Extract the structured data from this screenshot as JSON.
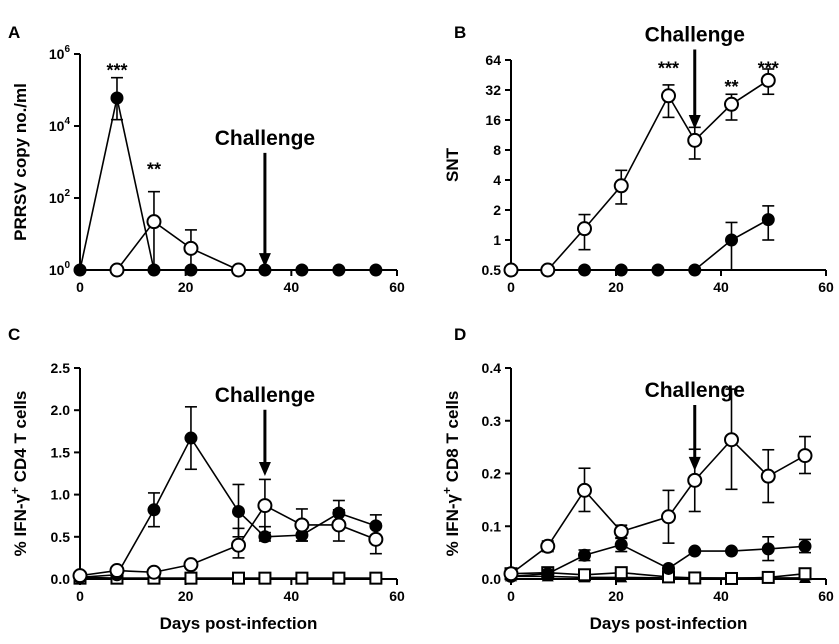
{
  "chart_data": [
    {
      "type": "line",
      "panel_label": "A",
      "ylabel": "PRRSV copy no./ml",
      "xlabel": "",
      "yscale": "log",
      "xlim": [
        0,
        60
      ],
      "ylim": [
        1,
        1000000
      ],
      "xticks": [
        0,
        20,
        40,
        60
      ],
      "yticks": [
        1,
        100,
        10000,
        1000000
      ],
      "ytick_labels": [
        {
          "base": "10",
          "exp": "0"
        },
        {
          "base": "10",
          "exp": "2"
        },
        {
          "base": "10",
          "exp": "4"
        },
        {
          "base": "10",
          "exp": "6"
        }
      ],
      "annotation": {
        "text": "Challenge",
        "x": 35,
        "arrow_tip_y": 1.2,
        "text_y": 3000
      },
      "significance": [
        {
          "text": "***",
          "x": 7,
          "y": 400000
        },
        {
          "text": "**",
          "x": 14,
          "y": 700
        }
      ],
      "series": [
        {
          "marker": "filled-circle",
          "points": [
            {
              "x": 0,
              "y": 1
            },
            {
              "x": 7,
              "y": 60000,
              "err": [
                15000,
                220000
              ]
            },
            {
              "x": 14,
              "y": 1
            },
            {
              "x": 21,
              "y": 1
            },
            {
              "x": 30,
              "y": 1
            },
            {
              "x": 35,
              "y": 1
            },
            {
              "x": 42,
              "y": 1
            },
            {
              "x": 49,
              "y": 1
            },
            {
              "x": 56,
              "y": 1
            }
          ]
        },
        {
          "marker": "open-circle",
          "points": [
            {
              "x": 7,
              "y": 1
            },
            {
              "x": 14,
              "y": 22,
              "err": [
                1,
                150
              ]
            },
            {
              "x": 21,
              "y": 4,
              "err": [
                1,
                13
              ]
            },
            {
              "x": 30,
              "y": 1
            }
          ]
        }
      ]
    },
    {
      "type": "line",
      "panel_label": "B",
      "ylabel": "SNT",
      "xlabel": "",
      "yscale": "log2",
      "xlim": [
        0,
        60
      ],
      "ylim": [
        0.5,
        64
      ],
      "xticks": [
        0,
        20,
        40,
        60
      ],
      "yticks": [
        0.5,
        1,
        2,
        4,
        8,
        16,
        32,
        64
      ],
      "ytick_labels": [
        "0.5",
        "1",
        "2",
        "4",
        "8",
        "16",
        "32",
        "64"
      ],
      "annotation": {
        "text": "Challenge",
        "x": 35,
        "arrow_tip_y": 13,
        "text_y": 98
      },
      "significance": [
        {
          "text": "***",
          "x": 30,
          "y": 55
        },
        {
          "text": "**",
          "x": 42,
          "y": 36
        },
        {
          "text": "***",
          "x": 49,
          "y": 55
        }
      ],
      "series": [
        {
          "marker": "filled-circle",
          "points": [
            {
              "x": 0,
              "y": 0.5
            },
            {
              "x": 7,
              "y": 0.5
            },
            {
              "x": 14,
              "y": 0.5
            },
            {
              "x": 21,
              "y": 0.5
            },
            {
              "x": 28,
              "y": 0.5
            },
            {
              "x": 35,
              "y": 0.5
            },
            {
              "x": 42,
              "y": 1,
              "err": [
                0.5,
                1.5
              ]
            },
            {
              "x": 49,
              "y": 1.6,
              "err": [
                1,
                2.2
              ]
            }
          ]
        },
        {
          "marker": "open-circle",
          "points": [
            {
              "x": 0,
              "y": 0.5
            },
            {
              "x": 7,
              "y": 0.5
            },
            {
              "x": 14,
              "y": 1.3,
              "err": [
                0.8,
                1.8
              ]
            },
            {
              "x": 21,
              "y": 3.5,
              "err": [
                2.3,
                5
              ]
            },
            {
              "x": 30,
              "y": 28,
              "err": [
                17,
                36
              ]
            },
            {
              "x": 35,
              "y": 10,
              "err": [
                6.5,
                13.5
              ]
            },
            {
              "x": 42,
              "y": 23,
              "err": [
                16,
                29
              ]
            },
            {
              "x": 49,
              "y": 40,
              "err": [
                29,
                52
              ]
            }
          ]
        }
      ]
    },
    {
      "type": "line",
      "panel_label": "C",
      "ylabel_parts": [
        "% IFN-γ",
        "+",
        " CD4 T cells"
      ],
      "xlabel": "Days post-infection",
      "yscale": "linear",
      "xlim": [
        0,
        60
      ],
      "ylim": [
        0,
        2.5
      ],
      "xticks": [
        0,
        20,
        40,
        60
      ],
      "yticks": [
        0,
        0.5,
        1,
        1.5,
        2,
        2.5
      ],
      "ytick_labels": [
        "0.0",
        "0.5",
        "1.0",
        "1.5",
        "2.0",
        "2.5"
      ],
      "annotation": {
        "text": "Challenge",
        "x": 35,
        "arrow_tip_y": 1.22,
        "text_y": 2.1
      },
      "significance": [],
      "series": [
        {
          "marker": "filled-circle",
          "points": [
            {
              "x": 0,
              "y": 0.02
            },
            {
              "x": 7,
              "y": 0.05
            },
            {
              "x": 14,
              "y": 0.82,
              "err": [
                0.62,
                1.02
              ]
            },
            {
              "x": 21,
              "y": 1.67,
              "err": [
                1.3,
                2.04
              ]
            },
            {
              "x": 30,
              "y": 0.8,
              "err": [
                0.5,
                1.12
              ]
            },
            {
              "x": 35,
              "y": 0.5,
              "err": [
                0.45,
                0.62
              ]
            },
            {
              "x": 42,
              "y": 0.52,
              "err": [
                0.45,
                0.6
              ]
            },
            {
              "x": 49,
              "y": 0.78,
              "err": [
                0.6,
                0.93
              ]
            },
            {
              "x": 56,
              "y": 0.63,
              "err": [
                0.5,
                0.76
              ]
            }
          ]
        },
        {
          "marker": "open-circle",
          "points": [
            {
              "x": 0,
              "y": 0.04
            },
            {
              "x": 7,
              "y": 0.1
            },
            {
              "x": 14,
              "y": 0.08
            },
            {
              "x": 21,
              "y": 0.17
            },
            {
              "x": 30,
              "y": 0.4,
              "err": [
                0.25,
                0.6
              ]
            },
            {
              "x": 35,
              "y": 0.87,
              "err": [
                0.55,
                1.18
              ]
            },
            {
              "x": 42,
              "y": 0.64,
              "err": [
                0.45,
                0.83
              ]
            },
            {
              "x": 49,
              "y": 0.64,
              "err": [
                0.45,
                0.82
              ]
            },
            {
              "x": 56,
              "y": 0.47,
              "err": [
                0.3,
                0.65
              ]
            }
          ]
        },
        {
          "marker": "filled-triangle",
          "points": [
            {
              "x": 0,
              "y": 0.02
            },
            {
              "x": 7,
              "y": 0.01
            },
            {
              "x": 14,
              "y": 0.01
            },
            {
              "x": 21,
              "y": 0.01
            },
            {
              "x": 30,
              "y": 0.01
            },
            {
              "x": 35,
              "y": 0.01
            },
            {
              "x": 42,
              "y": 0.01
            },
            {
              "x": 49,
              "y": 0.01
            },
            {
              "x": 56,
              "y": 0.01
            }
          ]
        },
        {
          "marker": "open-square",
          "points": [
            {
              "x": 0,
              "y": 0.01
            },
            {
              "x": 7,
              "y": 0.01
            },
            {
              "x": 14,
              "y": 0.01
            },
            {
              "x": 21,
              "y": 0.01
            },
            {
              "x": 30,
              "y": 0.01
            },
            {
              "x": 35,
              "y": 0.01
            },
            {
              "x": 42,
              "y": 0.01
            },
            {
              "x": 49,
              "y": 0.01
            },
            {
              "x": 56,
              "y": 0.01
            }
          ]
        }
      ]
    },
    {
      "type": "line",
      "panel_label": "D",
      "ylabel_parts": [
        "% IFN-γ",
        "+",
        " CD8 T cells"
      ],
      "xlabel": "Days post-infection",
      "yscale": "linear",
      "xlim": [
        0,
        60
      ],
      "ylim": [
        0,
        0.4
      ],
      "xticks": [
        0,
        20,
        40,
        60
      ],
      "yticks": [
        0,
        0.1,
        0.2,
        0.3,
        0.4
      ],
      "ytick_labels": [
        "0.0",
        "0.1",
        "0.2",
        "0.3",
        "0.4"
      ],
      "annotation": {
        "text": "Challenge",
        "x": 35,
        "arrow_tip_y": 0.205,
        "text_y": 0.345
      },
      "significance": [],
      "series": [
        {
          "marker": "filled-circle",
          "points": [
            {
              "x": 0,
              "y": 0.005
            },
            {
              "x": 7,
              "y": 0.01
            },
            {
              "x": 14,
              "y": 0.045,
              "err": [
                0.035,
                0.055
              ]
            },
            {
              "x": 21,
              "y": 0.065,
              "err": [
                0.052,
                0.077
              ]
            },
            {
              "x": 30,
              "y": 0.02
            },
            {
              "x": 35,
              "y": 0.053
            },
            {
              "x": 42,
              "y": 0.053
            },
            {
              "x": 49,
              "y": 0.057,
              "err": [
                0.035,
                0.08
              ]
            },
            {
              "x": 56,
              "y": 0.062,
              "err": [
                0.05,
                0.075
              ]
            }
          ]
        },
        {
          "marker": "open-circle",
          "points": [
            {
              "x": 0,
              "y": 0.01
            },
            {
              "x": 7,
              "y": 0.062,
              "err": [
                0.052,
                0.072
              ]
            },
            {
              "x": 14,
              "y": 0.168,
              "err": [
                0.128,
                0.21
              ]
            },
            {
              "x": 21,
              "y": 0.09,
              "err": [
                0.078,
                0.102
              ]
            },
            {
              "x": 30,
              "y": 0.118,
              "err": [
                0.068,
                0.168
              ]
            },
            {
              "x": 35,
              "y": 0.187,
              "err": [
                0.128,
                0.246
              ]
            },
            {
              "x": 42,
              "y": 0.264,
              "err": [
                0.17,
                0.36
              ]
            },
            {
              "x": 49,
              "y": 0.195,
              "err": [
                0.145,
                0.245
              ]
            },
            {
              "x": 56,
              "y": 0.234,
              "err": [
                0.2,
                0.27
              ]
            }
          ]
        },
        {
          "marker": "filled-triangle",
          "points": [
            {
              "x": 0,
              "y": 0.005
            },
            {
              "x": 7,
              "y": 0.005
            },
            {
              "x": 14,
              "y": 0.003
            },
            {
              "x": 21,
              "y": 0.003
            },
            {
              "x": 30,
              "y": 0.002
            },
            {
              "x": 35,
              "y": 0.002
            },
            {
              "x": 42,
              "y": 0.002
            },
            {
              "x": 49,
              "y": 0.002
            },
            {
              "x": 56,
              "y": 0.002
            }
          ]
        },
        {
          "marker": "open-square",
          "points": [
            {
              "x": 0,
              "y": 0.01
            },
            {
              "x": 7,
              "y": 0.012
            },
            {
              "x": 14,
              "y": 0.008
            },
            {
              "x": 21,
              "y": 0.012
            },
            {
              "x": 30,
              "y": 0.004
            },
            {
              "x": 35,
              "y": 0.002
            },
            {
              "x": 42,
              "y": 0.001
            },
            {
              "x": 49,
              "y": 0.003
            },
            {
              "x": 56,
              "y": 0.01
            }
          ]
        }
      ]
    }
  ]
}
